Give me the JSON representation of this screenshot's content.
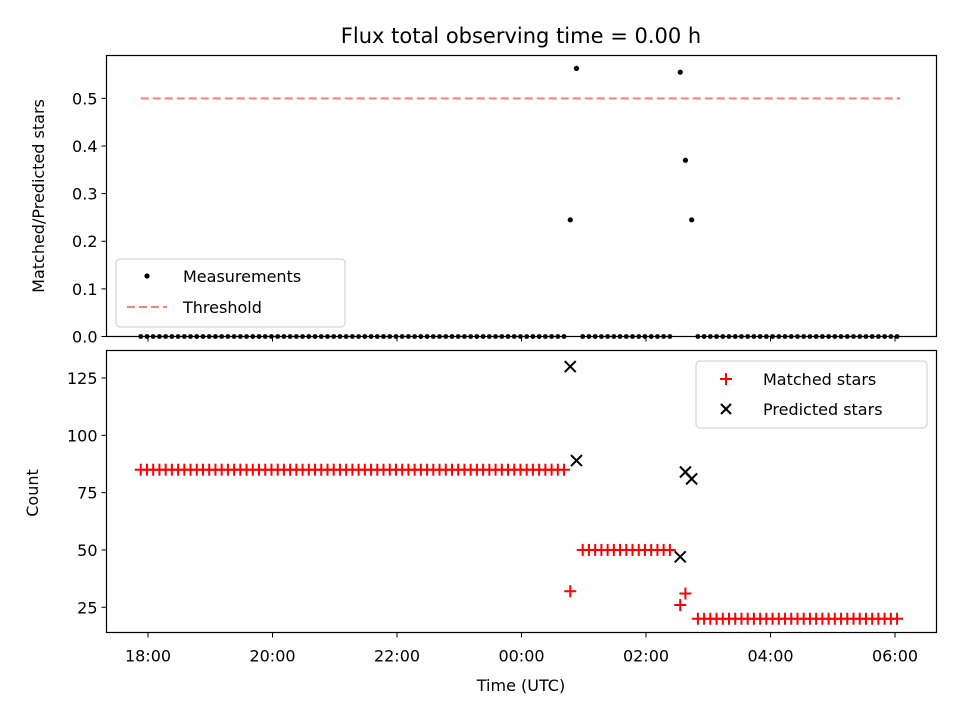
{
  "chart_data": [
    {
      "type": "scatter",
      "title": "Flux total observing time = 0.00 h",
      "ylabel": "Matched/Predicted stars",
      "xlabel": "",
      "ylim": [
        0,
        0.59
      ],
      "yticks": [
        "0.0",
        "0.1",
        "0.2",
        "0.3",
        "0.4",
        "0.5"
      ],
      "yticks_values": [
        0,
        0.1,
        0.2,
        0.3,
        0.4,
        0.5
      ],
      "legend_position": "lower-left",
      "series": [
        {
          "name": "Measurements",
          "marker": "dot",
          "color": "#000000",
          "points_nonzero": [
            {
              "x": "00:47",
              "y": 0.245
            },
            {
              "x": "00:53",
              "y": 0.563
            },
            {
              "x": "02:33",
              "y": 0.555
            },
            {
              "x": "02:38",
              "y": 0.37
            },
            {
              "x": "02:44",
              "y": 0.245
            }
          ],
          "zero_segments": [
            {
              "from": "17:53",
              "to": "00:41",
              "y": 0
            },
            {
              "from": "00:59",
              "to": "02:27",
              "y": 0
            },
            {
              "from": "02:50",
              "to": "06:05",
              "y": 0
            }
          ]
        },
        {
          "name": "Threshold",
          "style": "dashed",
          "color": "#ff7f7f",
          "from": "17:53",
          "to": "06:05",
          "y": 0.5
        }
      ]
    },
    {
      "type": "scatter",
      "title": "",
      "ylabel": "Count",
      "xlabel": "Time (UTC)",
      "ylim": [
        14,
        137
      ],
      "yticks": [
        "25",
        "50",
        "75",
        "100",
        "125"
      ],
      "yticks_values": [
        25,
        50,
        75,
        100,
        125
      ],
      "xticks": [
        "18:00",
        "20:00",
        "22:00",
        "00:00",
        "02:00",
        "04:00",
        "06:00"
      ],
      "x_range": [
        "17:20",
        "06:40"
      ],
      "legend_position": "upper-right",
      "series": [
        {
          "name": "Matched stars",
          "marker": "plus",
          "color": "#ff0000",
          "runs": [
            {
              "from": "17:53",
              "to": "00:41",
              "y": 85
            },
            {
              "from": "00:59",
              "to": "02:27",
              "y": 50
            },
            {
              "from": "02:50",
              "to": "06:05",
              "y": 20
            }
          ],
          "points": [
            {
              "x": "00:47",
              "y": 32
            },
            {
              "x": "02:33",
              "y": 26
            },
            {
              "x": "02:38",
              "y": 31
            }
          ]
        },
        {
          "name": "Predicted stars",
          "marker": "x",
          "color": "#000000",
          "points": [
            {
              "x": "00:47",
              "y": 130
            },
            {
              "x": "00:53",
              "y": 89
            },
            {
              "x": "02:33",
              "y": 47
            },
            {
              "x": "02:38",
              "y": 84
            },
            {
              "x": "02:44",
              "y": 81
            }
          ]
        }
      ]
    }
  ]
}
